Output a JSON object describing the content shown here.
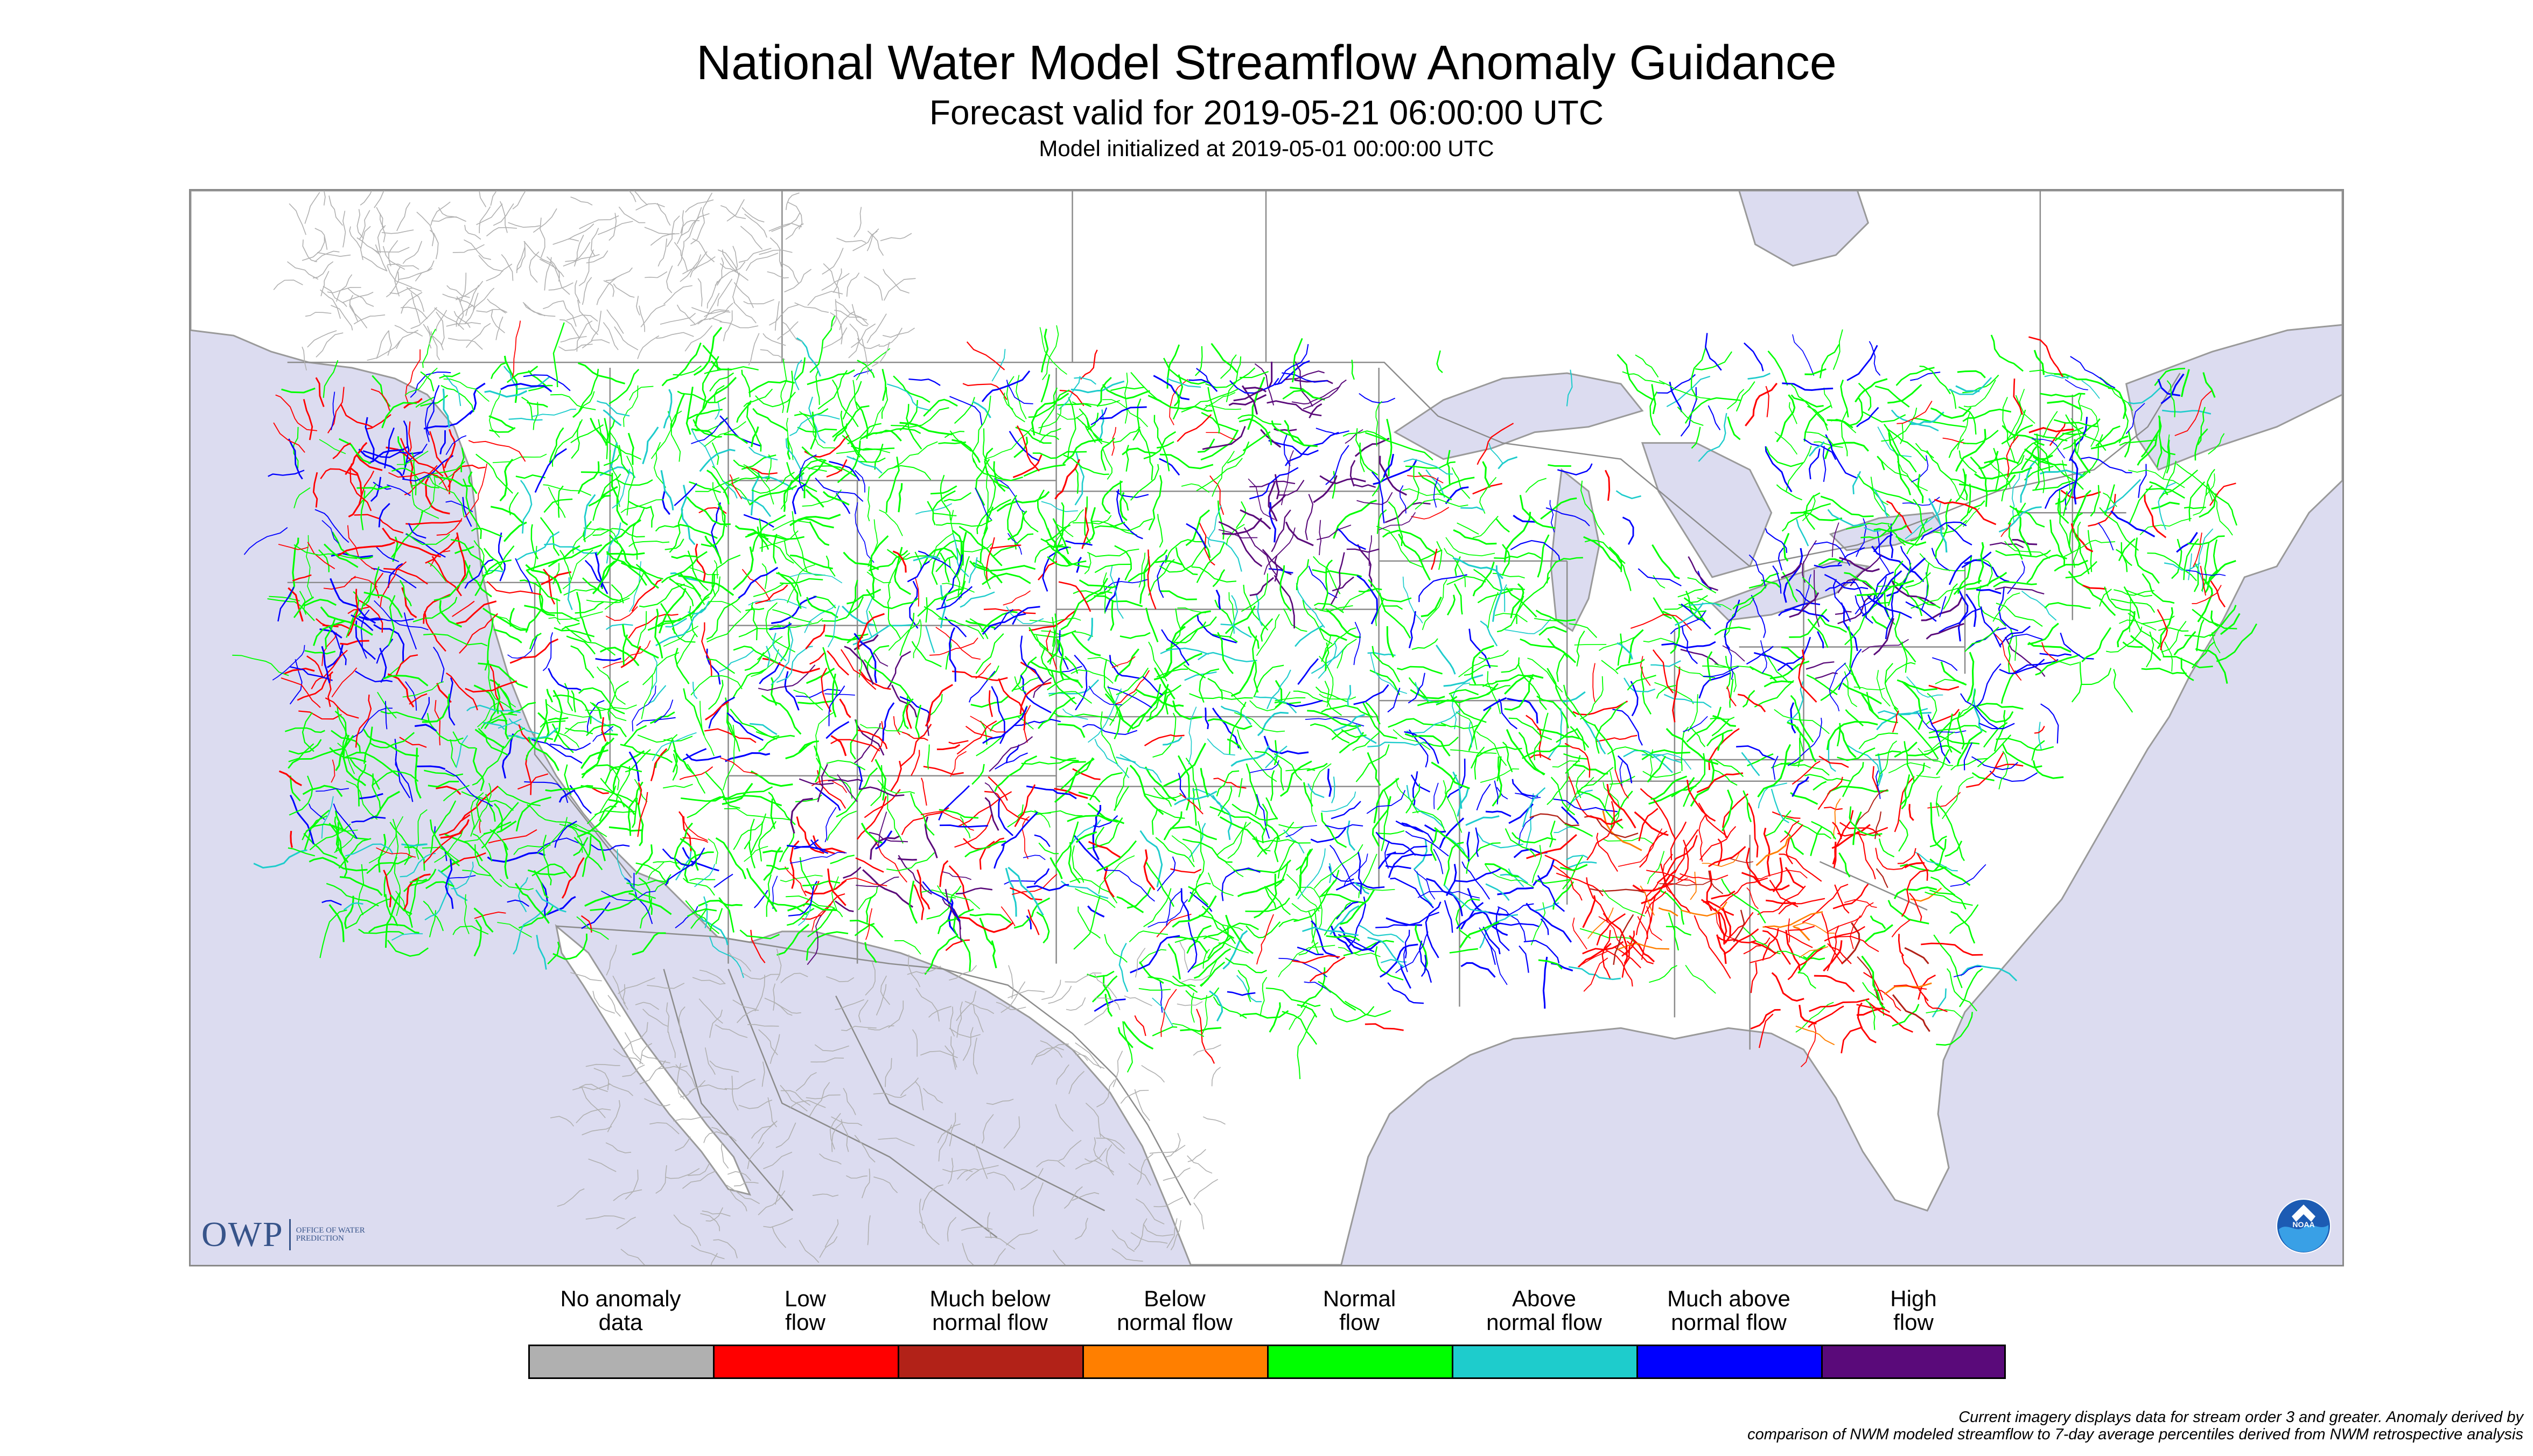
{
  "header": {
    "title": "National Water Model Streamflow Anomaly Guidance",
    "subtitle": "Forecast valid for 2019-05-21 06:00:00 UTC",
    "init": "Model initialized at 2019-05-01 00:00:00 UTC"
  },
  "map": {
    "region": "CONUS",
    "ocean_color": "#dcdcf0",
    "land_color": "#ffffff",
    "border_color": "#8a8a8a",
    "logos": {
      "owp_mark": "OWP",
      "owp_sub": "OFFICE OF WATER PREDICTION",
      "noaa": "NOAA"
    }
  },
  "legend": {
    "items": [
      {
        "label": "No anomaly\ndata",
        "color": "#b0b0b0"
      },
      {
        "label": "Low\nflow",
        "color": "#ff0000"
      },
      {
        "label": "Much below\nnormal flow",
        "color": "#b22218"
      },
      {
        "label": "Below\nnormal flow",
        "color": "#ff7f00"
      },
      {
        "label": "Normal\nflow",
        "color": "#00ff00"
      },
      {
        "label": "Above\nnormal flow",
        "color": "#1ecccc"
      },
      {
        "label": "Much above\nnormal flow",
        "color": "#0000ff"
      },
      {
        "label": "High\nflow",
        "color": "#5a0a7a"
      }
    ]
  },
  "footnote": "Current imagery displays data for stream order 3 and greater. Anomaly derived by\ncomparison of NWM modeled streamflow to 7-day average percentiles derived from NWM retrospective analysis"
}
